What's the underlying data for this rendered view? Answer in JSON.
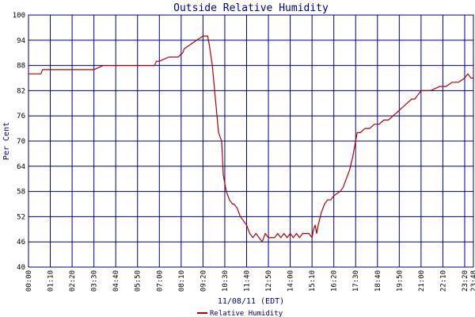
{
  "chart_data": {
    "type": "line",
    "title": "Outside Relative Humidity",
    "xlabel": "11/08/11 (EDT)",
    "ylabel": "Per Cent",
    "ylim": [
      40,
      100
    ],
    "yticks": [
      40,
      46,
      52,
      58,
      64,
      70,
      76,
      82,
      88,
      94,
      100
    ],
    "xlim": [
      "00:00",
      "23:48"
    ],
    "xticks": [
      "00:00",
      "01:10",
      "02:20",
      "03:30",
      "04:40",
      "05:50",
      "07:00",
      "08:10",
      "09:20",
      "10:30",
      "11:40",
      "12:50",
      "14:00",
      "15:10",
      "16:20",
      "17:30",
      "18:40",
      "19:50",
      "21:00",
      "22:10",
      "23:20",
      "23:48"
    ],
    "grid": true,
    "legend": "bottom-center",
    "colors": {
      "series": "#b00000",
      "grid": "#00007f",
      "text": "#00007f"
    },
    "series": [
      {
        "name": "Relative Humidity",
        "x": [
          "00:00",
          "00:40",
          "00:45",
          "01:30",
          "02:30",
          "03:30",
          "04:00",
          "04:40",
          "05:50",
          "06:45",
          "06:50",
          "07:00",
          "07:30",
          "08:00",
          "08:15",
          "08:20",
          "08:40",
          "09:00",
          "09:20",
          "09:35",
          "09:40",
          "09:50",
          "10:00",
          "10:10",
          "10:15",
          "10:20",
          "10:25",
          "10:30",
          "10:35",
          "10:40",
          "10:45",
          "10:55",
          "11:00",
          "11:10",
          "11:20",
          "11:30",
          "11:40",
          "11:50",
          "12:00",
          "12:10",
          "12:20",
          "12:30",
          "12:40",
          "12:50",
          "13:00",
          "13:10",
          "13:20",
          "13:30",
          "13:40",
          "13:50",
          "14:00",
          "14:10",
          "14:20",
          "14:30",
          "14:40",
          "14:50",
          "15:00",
          "15:10",
          "15:15",
          "15:20",
          "15:25",
          "15:30",
          "15:40",
          "15:50",
          "16:00",
          "16:10",
          "16:20",
          "16:40",
          "16:50",
          "17:00",
          "17:10",
          "17:20",
          "17:25",
          "17:30",
          "17:35",
          "17:45",
          "18:00",
          "18:15",
          "18:30",
          "18:45",
          "19:00",
          "19:15",
          "19:30",
          "19:45",
          "20:00",
          "20:15",
          "20:30",
          "20:40",
          "20:50",
          "21:00",
          "21:30",
          "22:00",
          "22:20",
          "22:40",
          "23:00",
          "23:20",
          "23:30",
          "23:40",
          "23:48"
        ],
        "values": [
          86,
          86,
          87,
          87,
          87,
          87,
          88,
          88,
          88,
          88,
          89,
          89,
          90,
          90,
          91,
          92,
          93,
          94,
          95,
          95,
          93,
          88,
          80,
          72,
          71,
          70,
          62,
          60,
          58,
          57,
          56,
          55,
          55,
          54,
          52,
          51,
          50,
          48,
          47,
          48,
          47,
          46,
          48,
          47,
          47,
          47,
          48,
          47,
          48,
          47,
          48,
          47,
          48,
          47,
          48,
          48,
          48,
          47,
          49,
          50,
          48,
          50,
          53,
          55,
          56,
          56,
          57,
          58,
          59,
          61,
          63,
          66,
          68,
          70,
          72,
          72,
          73,
          73,
          74,
          74,
          75,
          75,
          76,
          77,
          78,
          79,
          80,
          80,
          81,
          82,
          82,
          83,
          83,
          84,
          84,
          85,
          86,
          85,
          85
        ]
      }
    ]
  }
}
